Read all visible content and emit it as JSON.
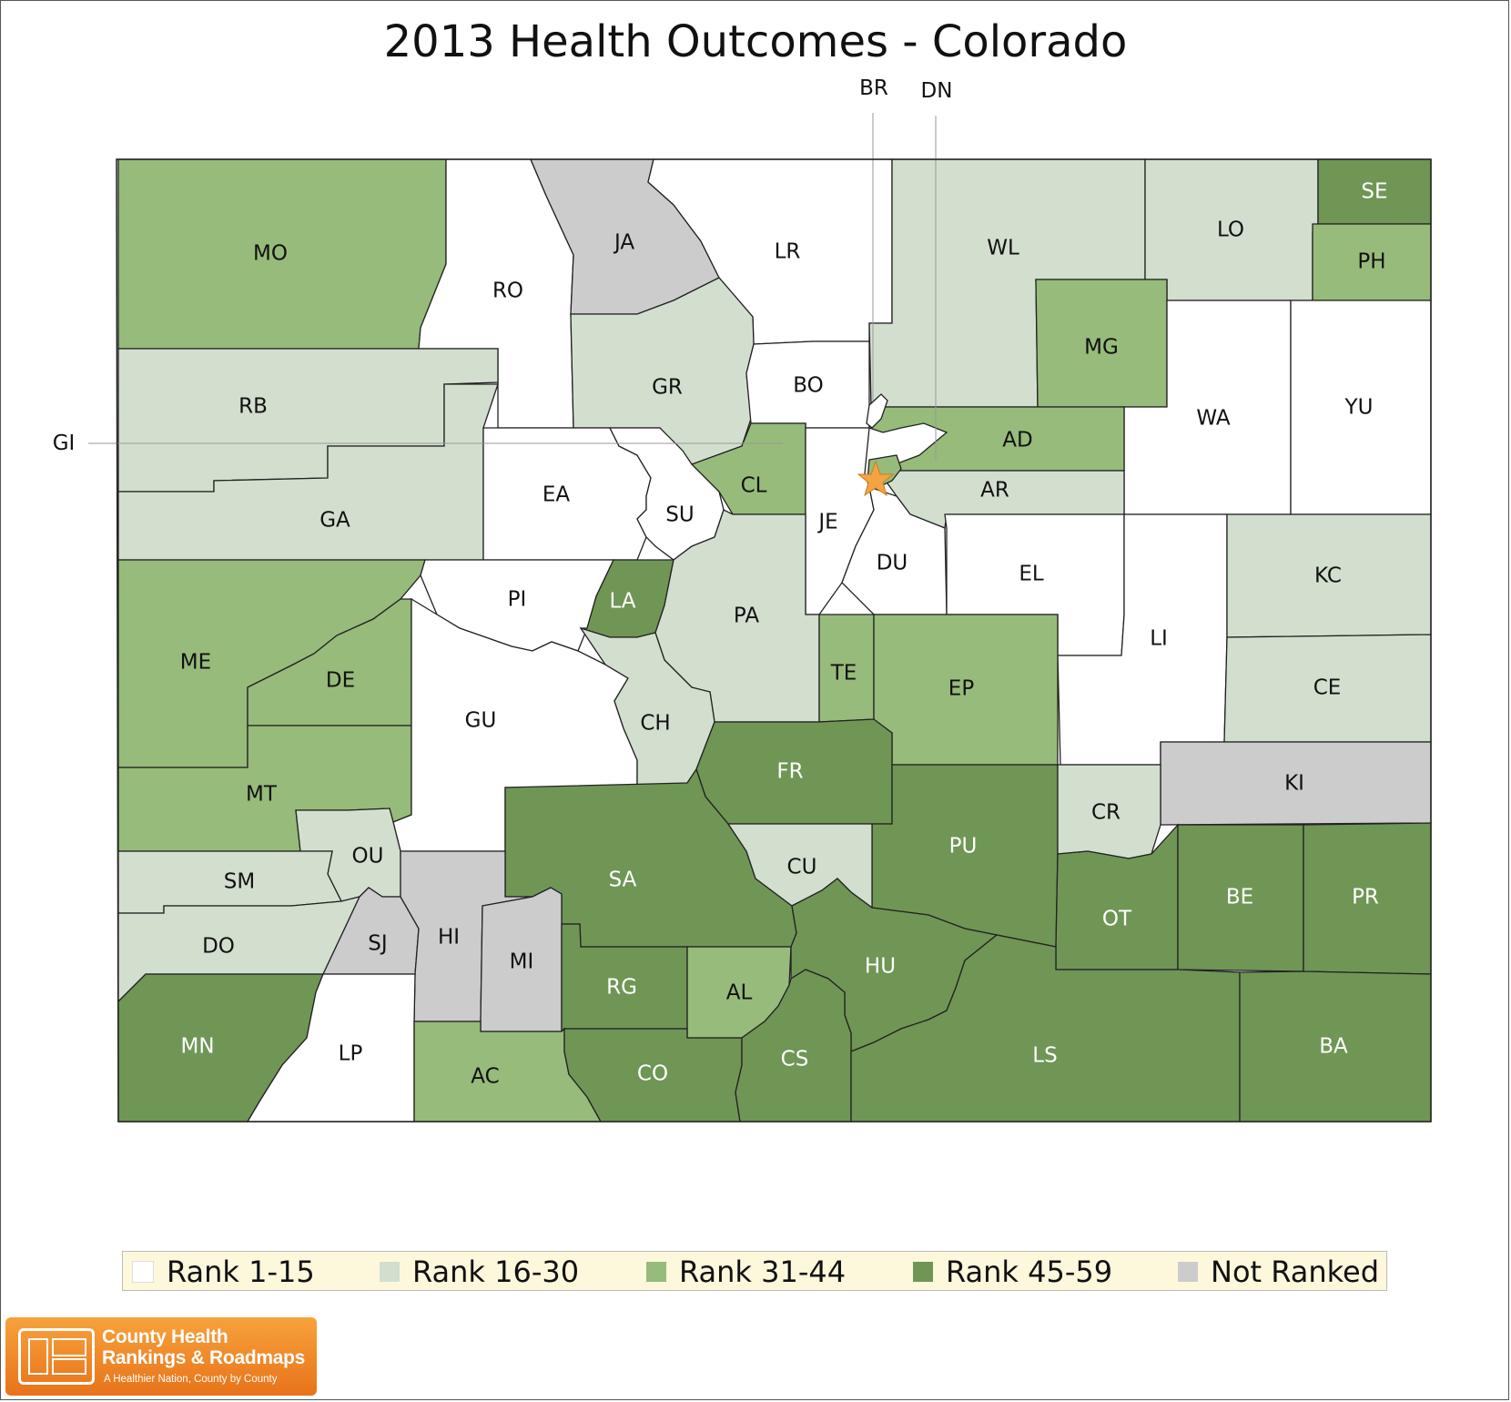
{
  "title": "2013 Health Outcomes - Colorado",
  "colors": {
    "rank_1_15": "#ffffff",
    "rank_16_30": "#d2dfcf",
    "rank_31_44": "#97bb7a",
    "rank_45_59": "#6f9655",
    "not_ranked": "#cccccc",
    "star": "#f2a444"
  },
  "legend": [
    {
      "label": "Rank 1-15",
      "class": "rank_1_15"
    },
    {
      "label": "Rank 16-30",
      "class": "rank_16_30"
    },
    {
      "label": "Rank 31-44",
      "class": "rank_31_44"
    },
    {
      "label": "Rank 45-59",
      "class": "rank_45_59"
    },
    {
      "label": "Not Ranked",
      "class": "not_ranked"
    }
  ],
  "counties": [
    {
      "code": "MO",
      "class": "rank_31_44"
    },
    {
      "code": "RO",
      "class": "rank_1_15"
    },
    {
      "code": "JA",
      "class": "not_ranked"
    },
    {
      "code": "LR",
      "class": "rank_1_15"
    },
    {
      "code": "WL",
      "class": "rank_16_30"
    },
    {
      "code": "LO",
      "class": "rank_16_30"
    },
    {
      "code": "SE",
      "class": "rank_45_59"
    },
    {
      "code": "PH",
      "class": "rank_31_44"
    },
    {
      "code": "RB",
      "class": "rank_16_30"
    },
    {
      "code": "GA",
      "class": "rank_16_30"
    },
    {
      "code": "GR",
      "class": "rank_16_30"
    },
    {
      "code": "BO",
      "class": "rank_1_15"
    },
    {
      "code": "MG",
      "class": "rank_31_44"
    },
    {
      "code": "WA",
      "class": "rank_1_15"
    },
    {
      "code": "YU",
      "class": "rank_1_15"
    },
    {
      "code": "EA",
      "class": "rank_1_15"
    },
    {
      "code": "SU",
      "class": "rank_1_15"
    },
    {
      "code": "CL",
      "class": "rank_31_44"
    },
    {
      "code": "JE",
      "class": "rank_1_15"
    },
    {
      "code": "AD",
      "class": "rank_31_44"
    },
    {
      "code": "AR",
      "class": "rank_16_30"
    },
    {
      "code": "DU",
      "class": "rank_1_15"
    },
    {
      "code": "EL",
      "class": "rank_1_15"
    },
    {
      "code": "LI",
      "class": "rank_1_15"
    },
    {
      "code": "KC",
      "class": "rank_16_30"
    },
    {
      "code": "CE",
      "class": "rank_16_30"
    },
    {
      "code": "KI",
      "class": "not_ranked"
    },
    {
      "code": "ME",
      "class": "rank_31_44"
    },
    {
      "code": "DE",
      "class": "rank_31_44"
    },
    {
      "code": "PI",
      "class": "rank_1_15"
    },
    {
      "code": "LA",
      "class": "rank_45_59"
    },
    {
      "code": "PA",
      "class": "rank_16_30"
    },
    {
      "code": "TE",
      "class": "rank_31_44"
    },
    {
      "code": "EP",
      "class": "rank_31_44"
    },
    {
      "code": "MT",
      "class": "rank_31_44"
    },
    {
      "code": "GU",
      "class": "rank_1_15"
    },
    {
      "code": "CH",
      "class": "rank_16_30"
    },
    {
      "code": "FR",
      "class": "rank_45_59"
    },
    {
      "code": "PU",
      "class": "rank_45_59"
    },
    {
      "code": "CR",
      "class": "rank_16_30"
    },
    {
      "code": "OU",
      "class": "rank_16_30"
    },
    {
      "code": "SM",
      "class": "rank_16_30"
    },
    {
      "code": "SA",
      "class": "rank_45_59"
    },
    {
      "code": "CU",
      "class": "rank_16_30"
    },
    {
      "code": "OT",
      "class": "rank_45_59"
    },
    {
      "code": "BE",
      "class": "rank_45_59"
    },
    {
      "code": "PR",
      "class": "rank_45_59"
    },
    {
      "code": "DO",
      "class": "rank_16_30"
    },
    {
      "code": "SJ",
      "class": "not_ranked"
    },
    {
      "code": "HI",
      "class": "not_ranked"
    },
    {
      "code": "MI",
      "class": "not_ranked"
    },
    {
      "code": "RG",
      "class": "rank_45_59"
    },
    {
      "code": "AL",
      "class": "rank_31_44"
    },
    {
      "code": "HU",
      "class": "rank_45_59"
    },
    {
      "code": "MN",
      "class": "rank_45_59"
    },
    {
      "code": "LP",
      "class": "rank_1_15"
    },
    {
      "code": "AC",
      "class": "rank_31_44"
    },
    {
      "code": "CO",
      "class": "rank_45_59"
    },
    {
      "code": "CS",
      "class": "rank_45_59"
    },
    {
      "code": "LS",
      "class": "rank_45_59"
    },
    {
      "code": "BA",
      "class": "rank_45_59"
    }
  ],
  "callouts": [
    {
      "code": "BR"
    },
    {
      "code": "DN"
    },
    {
      "code": "GI"
    }
  ],
  "logo": {
    "line1": "County Health",
    "line2": "Rankings & Roadmaps",
    "tagline": "A Healthier Nation, County by County"
  }
}
